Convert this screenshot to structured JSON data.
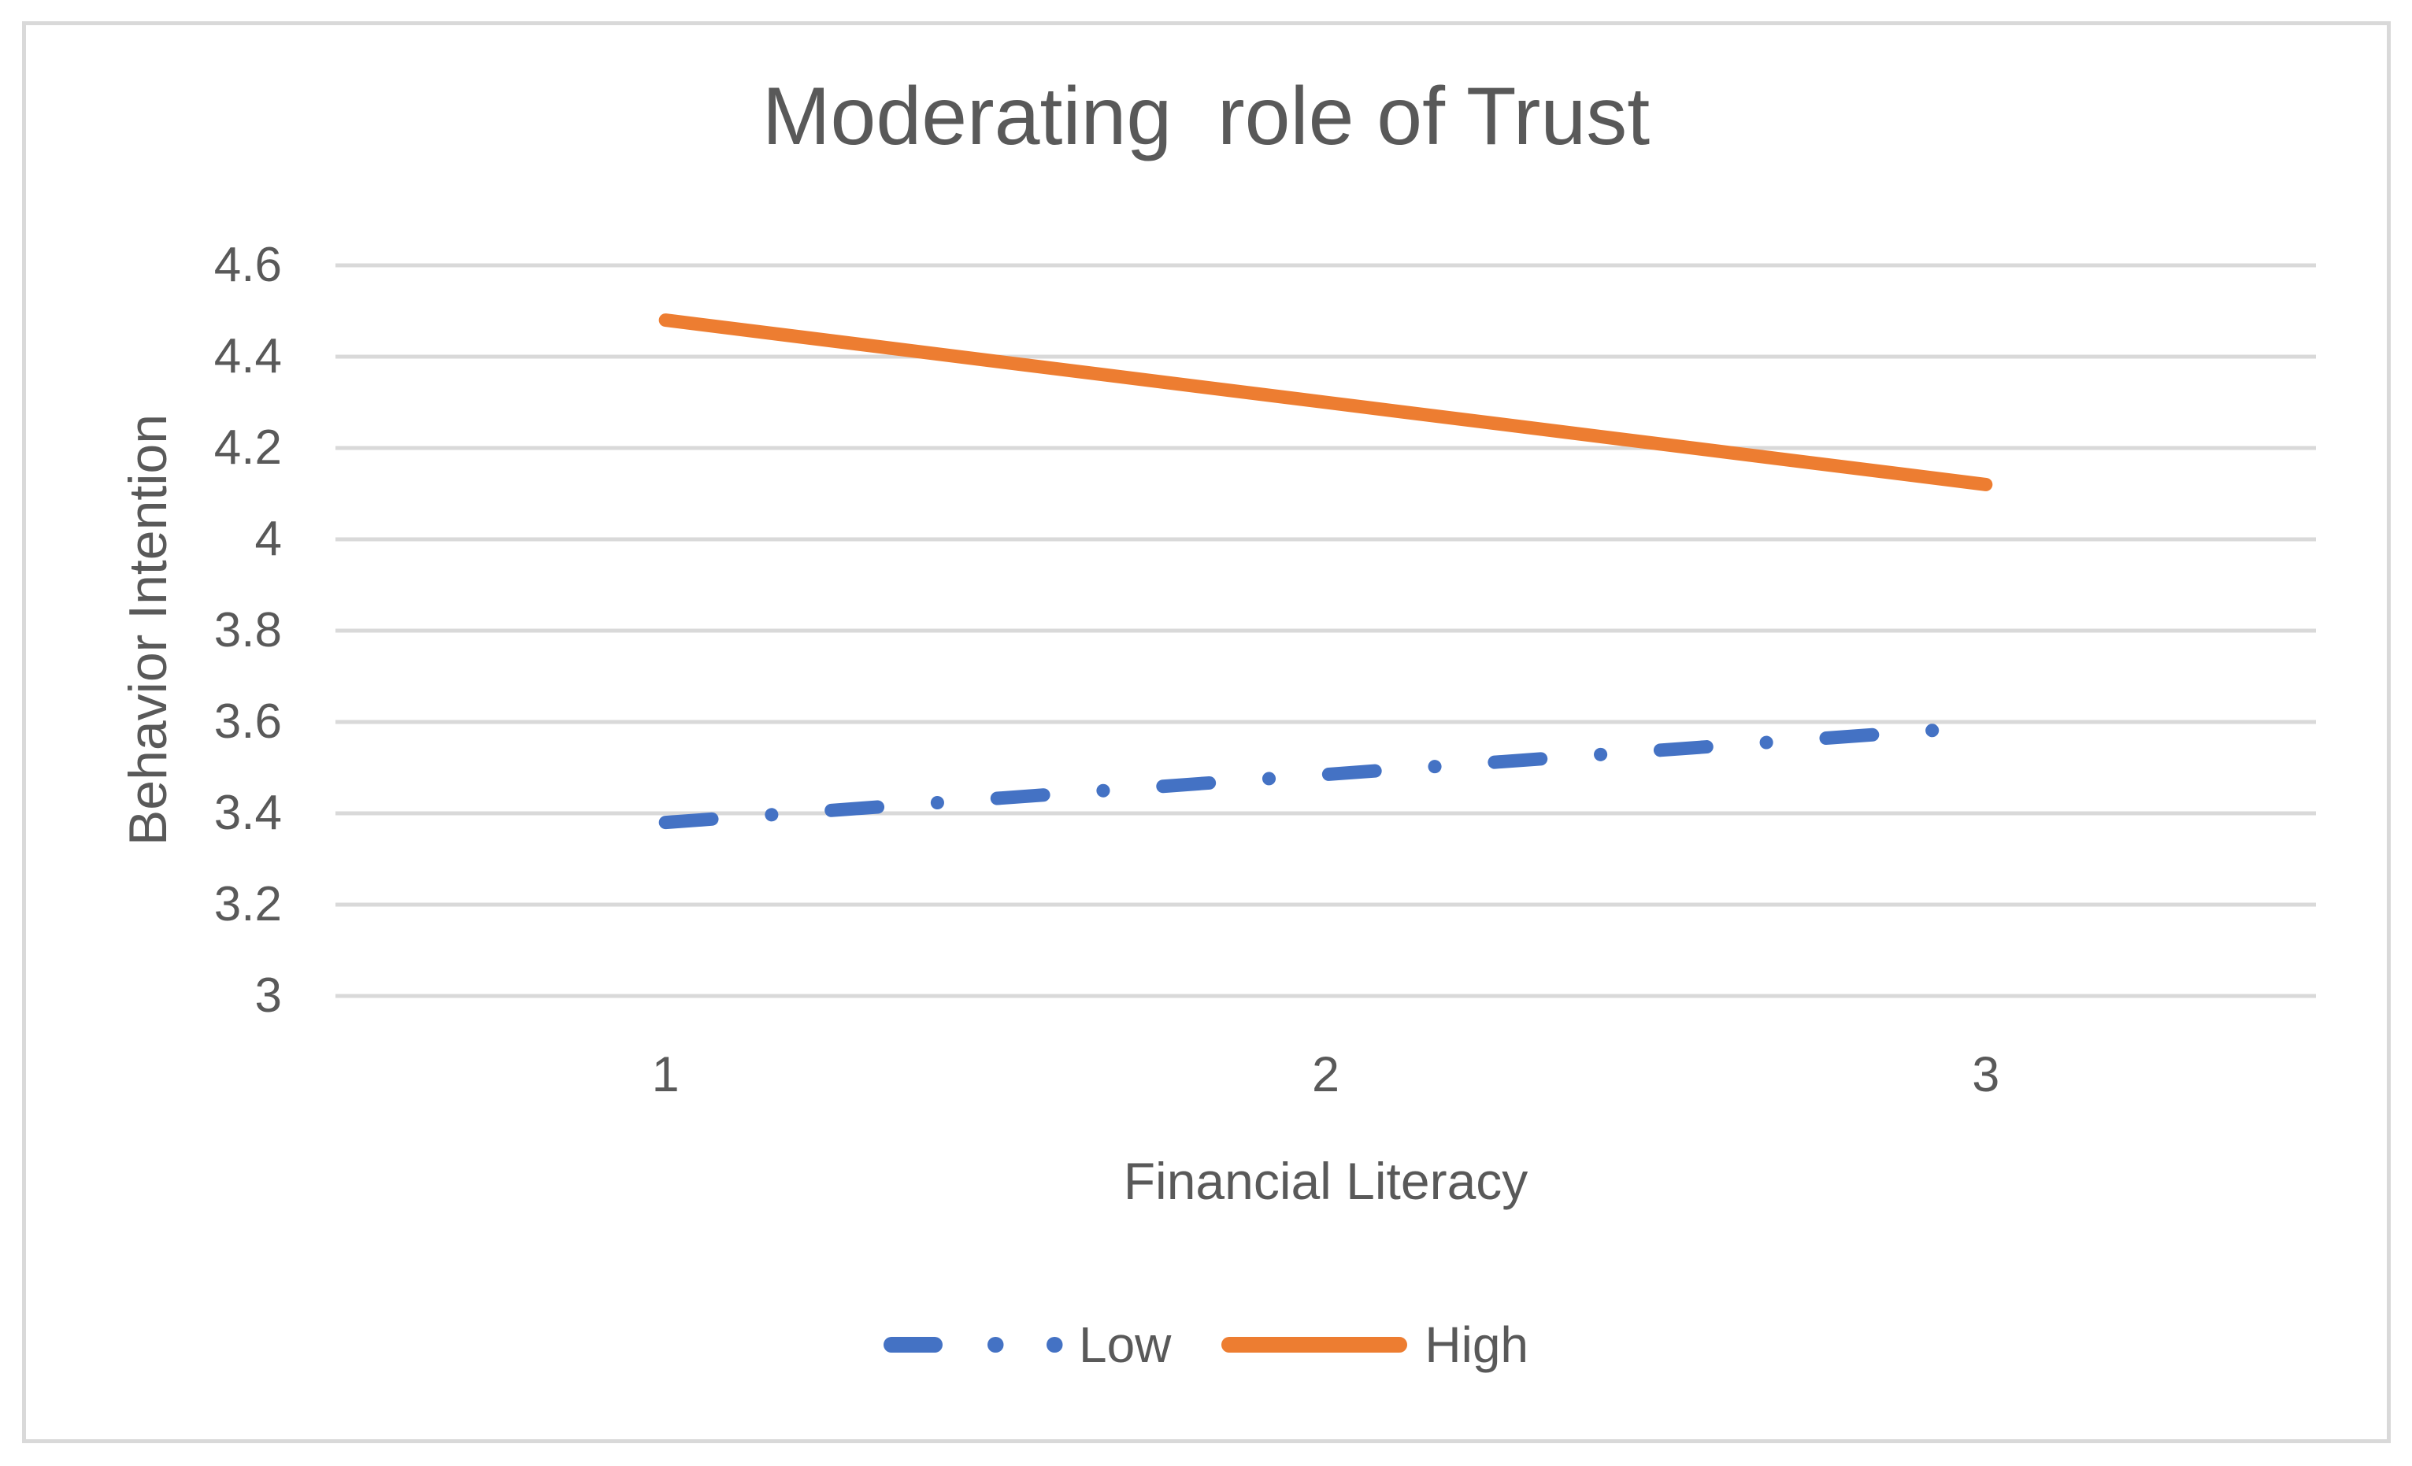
{
  "colors": {
    "background": "#ffffff",
    "border": "#d9d9d9",
    "gridline": "#d9d9d9",
    "text": "#595959",
    "series_low": "#4472c4",
    "series_high": "#ed7d31"
  },
  "title": "Moderating  role of Trust",
  "y_axis_title": "Behavior Intention",
  "x_axis_title": "Financial Literacy",
  "legend": {
    "low_label": "Low",
    "high_label": "High"
  },
  "chart_data": {
    "type": "line",
    "title": "Moderating  role of Trust",
    "xlabel": "Financial Literacy",
    "ylabel": "Behavior Intention",
    "x": [
      1,
      2,
      3
    ],
    "xtick_labels": [
      "1",
      "2",
      "3"
    ],
    "series": [
      {
        "name": "Low",
        "values": [
          3.38,
          3.485,
          3.59
        ],
        "color": "#4472c4",
        "line_style": "long-dash-dot",
        "line_width": 17
      },
      {
        "name": "High",
        "values": [
          4.48,
          4.3,
          4.12
        ],
        "color": "#ed7d31",
        "line_style": "solid",
        "line_width": 17
      }
    ],
    "ylim": [
      3,
      4.6
    ],
    "yticks": [
      3,
      3.2,
      3.4,
      3.6,
      3.8,
      4,
      4.2,
      4.4,
      4.6
    ],
    "ytick_labels": [
      "3",
      "3.2",
      "3.4",
      "3.6",
      "3.8",
      "4",
      "4.2",
      "4.4",
      "4.6"
    ],
    "grid": true,
    "legend_position": "bottom",
    "legend_entries": [
      "Low",
      "High"
    ]
  }
}
